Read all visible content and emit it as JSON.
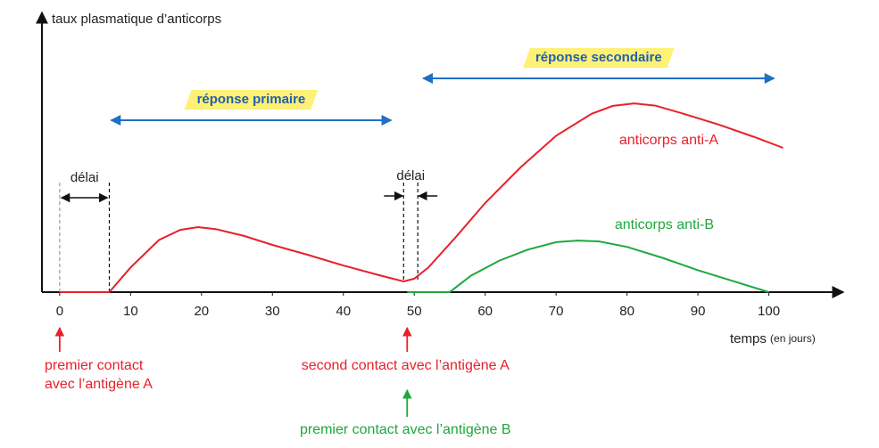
{
  "chart_data": {
    "type": "line",
    "ylabel": "taux plasmatique d’anticorps",
    "xlabel": "temps",
    "xlabel_unit": "(en jours)",
    "xlim": [
      -2.5,
      110.5
    ],
    "xticks": [
      0,
      10,
      20,
      30,
      40,
      50,
      60,
      70,
      80,
      90,
      100
    ],
    "ylim": [
      0,
      100
    ],
    "series": [
      {
        "name": "anticorps anti-A",
        "color": "#e8202a",
        "x": [
          0,
          7,
          10,
          14,
          17,
          19.5,
          22,
          26,
          30,
          35,
          40,
          45,
          48.5,
          50,
          52,
          56,
          60,
          65,
          70,
          75,
          78,
          81,
          84,
          88,
          93,
          98,
          102
        ],
        "values": [
          0,
          0,
          9,
          19,
          22.7,
          23.7,
          23,
          20.5,
          17.2,
          13.6,
          9.7,
          6.2,
          3.9,
          4.9,
          9,
          20.5,
          32.5,
          45.5,
          57,
          65,
          67.9,
          68.8,
          68,
          65,
          61,
          56.5,
          52.6
        ]
      },
      {
        "name": "anticorps anti-B",
        "color": "#1ea83c",
        "x": [
          49,
          55,
          58,
          62,
          66,
          70,
          73,
          76,
          80,
          85,
          90,
          95,
          100
        ],
        "values": [
          0,
          0,
          6,
          11.5,
          15.5,
          18.2,
          18.8,
          18.5,
          16.5,
          12.5,
          8,
          4,
          0
        ]
      }
    ],
    "delays": [
      {
        "label": "délai",
        "from": 0,
        "to": 7
      },
      {
        "label": "délai",
        "from": 48.5,
        "to": 50.5
      }
    ],
    "spans": [
      {
        "label": "réponse primaire",
        "from": 7,
        "to": 47
      },
      {
        "label": "réponse secondaire",
        "from": 51,
        "to": 101
      }
    ],
    "contacts": [
      {
        "x": 0,
        "color": "#e8202a",
        "lines": [
          "premier contact",
          "avec l’antigène A"
        ]
      },
      {
        "x": 49,
        "color": "#e8202a",
        "lines": [
          "second contact avec l’antigène A"
        ]
      },
      {
        "x": 49,
        "color": "#1ea83c",
        "lines": [
          "premier contact avec l’antigène B"
        ]
      }
    ]
  }
}
